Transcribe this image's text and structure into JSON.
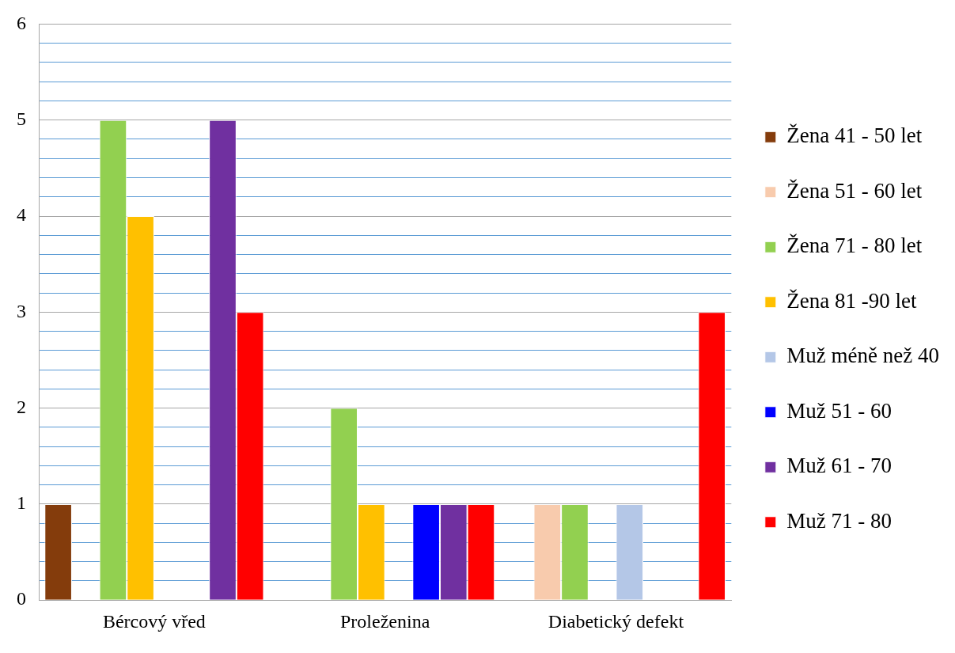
{
  "chart_data": {
    "type": "bar",
    "categories": [
      "Bércový vřed",
      "Proleženina",
      "Diabetický defekt"
    ],
    "series": [
      {
        "name": "Žena 41 - 50 let",
        "color": "#843c0c",
        "values": [
          1,
          null,
          null
        ]
      },
      {
        "name": "Žena 51 - 60 let",
        "color": "#f8cbad",
        "values": [
          null,
          null,
          1
        ]
      },
      {
        "name": "Žena 71 - 80 let",
        "color": "#92d050",
        "values": [
          5,
          2,
          1
        ]
      },
      {
        "name": "Žena 81 -90 let",
        "color": "#ffc000",
        "values": [
          4,
          1,
          null
        ]
      },
      {
        "name": "Muž méně než 40",
        "color": "#b4c7e7",
        "values": [
          null,
          null,
          1
        ]
      },
      {
        "name": "Muž 51 - 60",
        "color": "#0000ff",
        "values": [
          null,
          1,
          null
        ]
      },
      {
        "name": "Muž 61 - 70",
        "color": "#7030a0",
        "values": [
          5,
          1,
          null
        ]
      },
      {
        "name": "Muž 71 - 80",
        "color": "#ff0000",
        "values": [
          3,
          1,
          3
        ]
      }
    ],
    "ylim": [
      0,
      6
    ],
    "yticks": [
      0,
      {
        "value": 0.2,
        "label": null
      },
      {
        "value": 0.4,
        "label": null
      },
      {
        "value": 0.6,
        "label": null
      },
      {
        "value": 0.8,
        "label": null
      },
      1,
      {
        "value": 1.2,
        "label": null
      },
      {
        "value": 1.4,
        "label": null
      },
      {
        "value": 1.6,
        "label": null
      },
      {
        "value": 1.8,
        "label": null
      },
      2,
      {
        "value": 2.2,
        "label": null
      },
      {
        "value": 2.4,
        "label": null
      },
      {
        "value": 2.6,
        "label": null
      },
      {
        "value": 2.8,
        "label": null
      },
      3,
      {
        "value": 3.2,
        "label": null
      },
      {
        "value": 3.4,
        "label": null
      },
      {
        "value": 3.6,
        "label": null
      },
      {
        "value": 3.8,
        "label": null
      },
      4,
      {
        "value": 4.2,
        "label": null
      },
      {
        "value": 4.4,
        "label": null
      },
      {
        "value": 4.6,
        "label": null
      },
      {
        "value": 4.8,
        "label": null
      },
      5,
      {
        "value": 5.2,
        "label": null
      },
      {
        "value": 5.4,
        "label": null
      },
      {
        "value": 5.6,
        "label": null
      },
      {
        "value": 5.8,
        "label": null
      },
      6
    ],
    "grid": "y",
    "legend": "right"
  }
}
